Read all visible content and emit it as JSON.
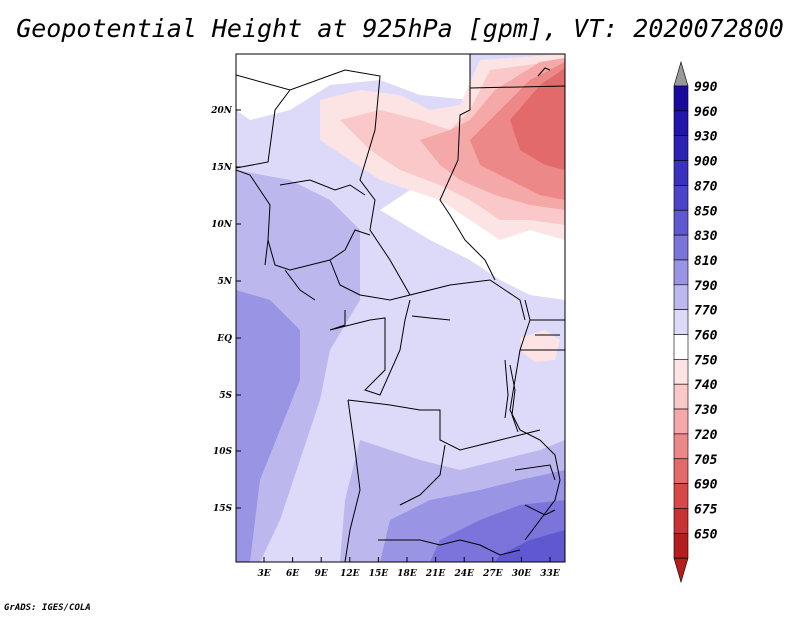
{
  "title": "Geopotential Height at 925hPa [gpm], VT: 2020072800",
  "credit": "GrADS: IGES/COLA",
  "map": {
    "lat_ticks": [
      "20N",
      "15N",
      "10N",
      "5N",
      "EQ",
      "5S",
      "10S",
      "15S"
    ],
    "lon_ticks": [
      "3E",
      "6E",
      "9E",
      "12E",
      "15E",
      "18E",
      "21E",
      "24E",
      "27E",
      "30E",
      "33E"
    ]
  },
  "colorbar": {
    "levels": [
      {
        "label": "990",
        "color": "#1a0aa0"
      },
      {
        "label": "960",
        "color": "#2215ab"
      },
      {
        "label": "930",
        "color": "#2c22b4"
      },
      {
        "label": "900",
        "color": "#3a32bf"
      },
      {
        "label": "870",
        "color": "#4a44c8"
      },
      {
        "label": "850",
        "color": "#6058d0"
      },
      {
        "label": "830",
        "color": "#7b74da"
      },
      {
        "label": "810",
        "color": "#9a94e4"
      },
      {
        "label": "790",
        "color": "#bcb8ee"
      },
      {
        "label": "770",
        "color": "#dcdaf8"
      },
      {
        "label": "760",
        "color": "#ffffff"
      },
      {
        "label": "750",
        "color": "#fde4e4"
      },
      {
        "label": "740",
        "color": "#fac8c8"
      },
      {
        "label": "730",
        "color": "#f4a8a8"
      },
      {
        "label": "720",
        "color": "#ec8888"
      },
      {
        "label": "705",
        "color": "#e26a6a"
      },
      {
        "label": "690",
        "color": "#d84848"
      },
      {
        "label": "675",
        "color": "#c83232"
      },
      {
        "label": "650",
        "color": "#b41e1e"
      }
    ],
    "top_arrow_color": "#999999",
    "bottom_arrow_color": "#b41e1e"
  }
}
